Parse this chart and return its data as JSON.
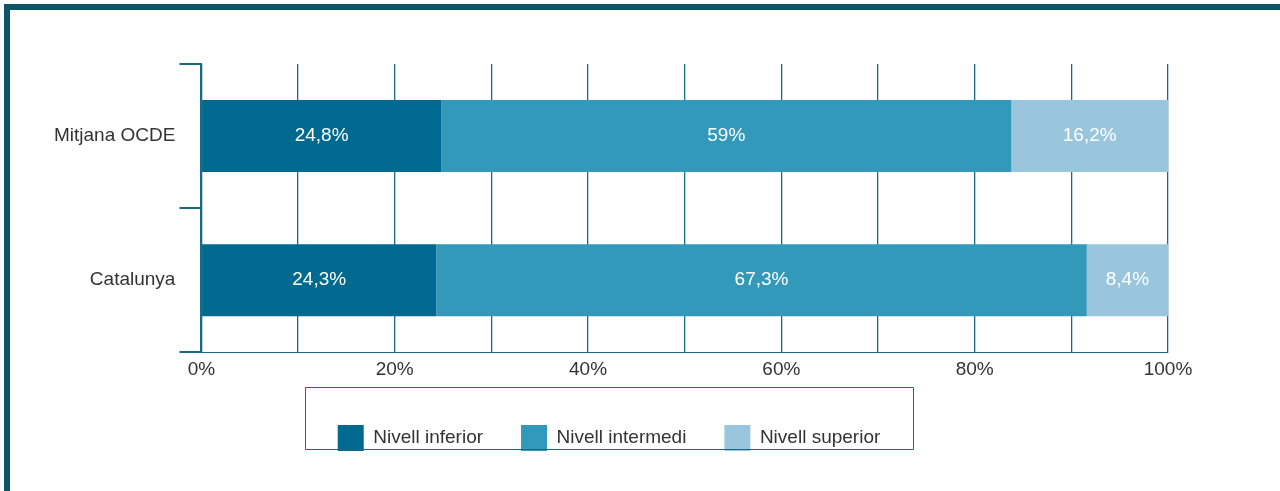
{
  "chart_data": {
    "type": "bar",
    "orientation": "horizontal",
    "stacked": true,
    "categories": [
      "Mitjana OCDE",
      "Catalunya"
    ],
    "series": [
      {
        "name": "Nivell inferior",
        "color": "#006990",
        "values": [
          24.8,
          24.3
        ],
        "value_labels": [
          "24,8%",
          "24,3%"
        ]
      },
      {
        "name": "Nivell intermedi",
        "color": "#3399bb",
        "values": [
          59,
          67.3
        ],
        "value_labels": [
          "59%",
          "67,3%"
        ]
      },
      {
        "name": "Nivell superior",
        "color": "#99c6dc",
        "values": [
          16.2,
          8.4
        ],
        "value_labels": [
          "16,2%",
          "8,4%"
        ]
      }
    ],
    "xlim": [
      0,
      100
    ],
    "xticks": [
      {
        "value": 0,
        "label": "0%"
      },
      {
        "value": 10,
        "label": null
      },
      {
        "value": 20,
        "label": "20%"
      },
      {
        "value": 30,
        "label": null
      },
      {
        "value": 40,
        "label": "40%"
      },
      {
        "value": 50,
        "label": null
      },
      {
        "value": 60,
        "label": "60%"
      },
      {
        "value": 70,
        "label": null
      },
      {
        "value": 80,
        "label": "80%"
      },
      {
        "value": 90,
        "label": null
      },
      {
        "value": 100,
        "label": "100%"
      }
    ],
    "grid": "x",
    "legend": "bottom"
  }
}
